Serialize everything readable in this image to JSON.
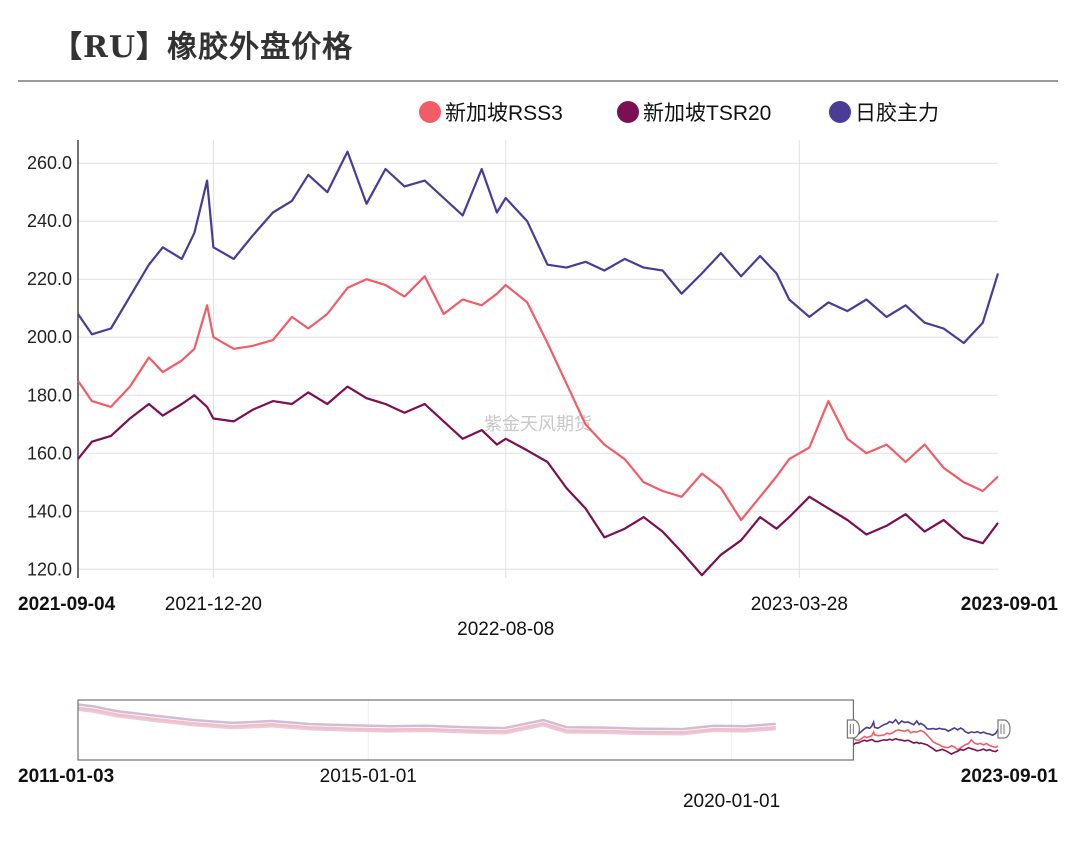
{
  "title": "【RU】橡胶外盘价格",
  "watermark": "紫金天风期货",
  "chart_data": {
    "type": "line",
    "legend_position": "top-right",
    "grid": true,
    "ylim": [
      117,
      268
    ],
    "yticks": [
      "260.0",
      "240.0",
      "220.0",
      "200.0",
      "180.0",
      "160.0",
      "140.0",
      "120.0"
    ],
    "ytick_values": [
      260,
      240,
      220,
      200,
      180,
      160,
      140,
      120
    ],
    "x_range": [
      "2021-09-04",
      "2023-09-01"
    ],
    "xticks": [
      {
        "label": "2021-09-04",
        "date": "2021-09-04",
        "bold": true,
        "row": 0
      },
      {
        "label": "2021-12-20",
        "date": "2021-12-20",
        "bold": false,
        "row": 0
      },
      {
        "label": "2022-08-08",
        "date": "2022-08-08",
        "bold": false,
        "row": 1
      },
      {
        "label": "2023-03-28",
        "date": "2023-03-28",
        "bold": false,
        "row": 0
      },
      {
        "label": "2023-09-01",
        "date": "2023-09-01",
        "bold": true,
        "row": 0
      }
    ],
    "series": [
      {
        "name": "新加坡RSS3",
        "color": "#f25c66",
        "points": [
          [
            "2021-09-04",
            185
          ],
          [
            "2021-09-15",
            178
          ],
          [
            "2021-09-30",
            176
          ],
          [
            "2021-10-15",
            183
          ],
          [
            "2021-10-30",
            193
          ],
          [
            "2021-11-10",
            188
          ],
          [
            "2021-11-25",
            192
          ],
          [
            "2021-12-05",
            196
          ],
          [
            "2021-12-15",
            211
          ],
          [
            "2021-12-20",
            200
          ],
          [
            "2022-01-05",
            196
          ],
          [
            "2022-01-20",
            197
          ],
          [
            "2022-02-05",
            199
          ],
          [
            "2022-02-20",
            207
          ],
          [
            "2022-03-05",
            203
          ],
          [
            "2022-03-20",
            208
          ],
          [
            "2022-04-05",
            217
          ],
          [
            "2022-04-20",
            220
          ],
          [
            "2022-05-05",
            218
          ],
          [
            "2022-05-20",
            214
          ],
          [
            "2022-06-05",
            221
          ],
          [
            "2022-06-20",
            208
          ],
          [
            "2022-07-05",
            213
          ],
          [
            "2022-07-20",
            211
          ],
          [
            "2022-08-01",
            215
          ],
          [
            "2022-08-08",
            218
          ],
          [
            "2022-08-25",
            212
          ],
          [
            "2022-09-10",
            198
          ],
          [
            "2022-09-25",
            184
          ],
          [
            "2022-10-10",
            170
          ],
          [
            "2022-10-25",
            163
          ],
          [
            "2022-11-10",
            158
          ],
          [
            "2022-11-25",
            150
          ],
          [
            "2022-12-10",
            147
          ],
          [
            "2022-12-25",
            145
          ],
          [
            "2023-01-10",
            153
          ],
          [
            "2023-01-25",
            148
          ],
          [
            "2023-02-10",
            137
          ],
          [
            "2023-02-25",
            145
          ],
          [
            "2023-03-10",
            152
          ],
          [
            "2023-03-20",
            158
          ],
          [
            "2023-04-05",
            162
          ],
          [
            "2023-04-20",
            178
          ],
          [
            "2023-05-05",
            165
          ],
          [
            "2023-05-20",
            160
          ],
          [
            "2023-06-05",
            163
          ],
          [
            "2023-06-20",
            157
          ],
          [
            "2023-07-05",
            163
          ],
          [
            "2023-07-20",
            155
          ],
          [
            "2023-08-05",
            150
          ],
          [
            "2023-08-20",
            147
          ],
          [
            "2023-09-01",
            152
          ]
        ]
      },
      {
        "name": "新加坡TSR20",
        "color": "#7b0f52",
        "points": [
          [
            "2021-09-04",
            158
          ],
          [
            "2021-09-15",
            164
          ],
          [
            "2021-09-30",
            166
          ],
          [
            "2021-10-15",
            172
          ],
          [
            "2021-10-30",
            177
          ],
          [
            "2021-11-10",
            173
          ],
          [
            "2021-11-25",
            177
          ],
          [
            "2021-12-05",
            180
          ],
          [
            "2021-12-15",
            176
          ],
          [
            "2021-12-20",
            172
          ],
          [
            "2022-01-05",
            171
          ],
          [
            "2022-01-20",
            175
          ],
          [
            "2022-02-05",
            178
          ],
          [
            "2022-02-20",
            177
          ],
          [
            "2022-03-05",
            181
          ],
          [
            "2022-03-20",
            177
          ],
          [
            "2022-04-05",
            183
          ],
          [
            "2022-04-20",
            179
          ],
          [
            "2022-05-05",
            177
          ],
          [
            "2022-05-20",
            174
          ],
          [
            "2022-06-05",
            177
          ],
          [
            "2022-06-20",
            171
          ],
          [
            "2022-07-05",
            165
          ],
          [
            "2022-07-20",
            168
          ],
          [
            "2022-08-01",
            163
          ],
          [
            "2022-08-08",
            165
          ],
          [
            "2022-08-25",
            161
          ],
          [
            "2022-09-10",
            157
          ],
          [
            "2022-09-25",
            148
          ],
          [
            "2022-10-10",
            141
          ],
          [
            "2022-10-25",
            131
          ],
          [
            "2022-11-10",
            134
          ],
          [
            "2022-11-25",
            138
          ],
          [
            "2022-12-10",
            133
          ],
          [
            "2022-12-25",
            126
          ],
          [
            "2023-01-10",
            118
          ],
          [
            "2023-01-25",
            125
          ],
          [
            "2023-02-10",
            130
          ],
          [
            "2023-02-25",
            138
          ],
          [
            "2023-03-10",
            134
          ],
          [
            "2023-03-20",
            138
          ],
          [
            "2023-04-05",
            145
          ],
          [
            "2023-04-20",
            141
          ],
          [
            "2023-05-05",
            137
          ],
          [
            "2023-05-20",
            132
          ],
          [
            "2023-06-05",
            135
          ],
          [
            "2023-06-20",
            139
          ],
          [
            "2023-07-05",
            133
          ],
          [
            "2023-07-20",
            137
          ],
          [
            "2023-08-05",
            131
          ],
          [
            "2023-08-20",
            129
          ],
          [
            "2023-09-01",
            136
          ]
        ]
      },
      {
        "name": "日胶主力",
        "color": "#4a3b96",
        "points": [
          [
            "2021-09-04",
            208
          ],
          [
            "2021-09-15",
            201
          ],
          [
            "2021-09-30",
            203
          ],
          [
            "2021-10-15",
            214
          ],
          [
            "2021-10-30",
            225
          ],
          [
            "2021-11-10",
            231
          ],
          [
            "2021-11-25",
            227
          ],
          [
            "2021-12-05",
            236
          ],
          [
            "2021-12-15",
            254
          ],
          [
            "2021-12-20",
            231
          ],
          [
            "2022-01-05",
            227
          ],
          [
            "2022-01-20",
            235
          ],
          [
            "2022-02-05",
            243
          ],
          [
            "2022-02-20",
            247
          ],
          [
            "2022-03-05",
            256
          ],
          [
            "2022-03-20",
            250
          ],
          [
            "2022-04-05",
            264
          ],
          [
            "2022-04-20",
            246
          ],
          [
            "2022-05-05",
            258
          ],
          [
            "2022-05-20",
            252
          ],
          [
            "2022-06-05",
            254
          ],
          [
            "2022-06-20",
            248
          ],
          [
            "2022-07-05",
            242
          ],
          [
            "2022-07-20",
            258
          ],
          [
            "2022-08-01",
            243
          ],
          [
            "2022-08-08",
            248
          ],
          [
            "2022-08-25",
            240
          ],
          [
            "2022-09-10",
            225
          ],
          [
            "2022-09-25",
            224
          ],
          [
            "2022-10-10",
            226
          ],
          [
            "2022-10-25",
            223
          ],
          [
            "2022-11-10",
            227
          ],
          [
            "2022-11-25",
            224
          ],
          [
            "2022-12-10",
            223
          ],
          [
            "2022-12-25",
            215
          ],
          [
            "2023-01-10",
            222
          ],
          [
            "2023-01-25",
            229
          ],
          [
            "2023-02-10",
            221
          ],
          [
            "2023-02-25",
            228
          ],
          [
            "2023-03-10",
            222
          ],
          [
            "2023-03-20",
            213
          ],
          [
            "2023-04-05",
            207
          ],
          [
            "2023-04-20",
            212
          ],
          [
            "2023-05-05",
            209
          ],
          [
            "2023-05-20",
            213
          ],
          [
            "2023-06-05",
            207
          ],
          [
            "2023-06-20",
            211
          ],
          [
            "2023-07-05",
            205
          ],
          [
            "2023-07-20",
            203
          ],
          [
            "2023-08-05",
            198
          ],
          [
            "2023-08-20",
            205
          ],
          [
            "2023-09-01",
            222
          ]
        ]
      }
    ],
    "navigator": {
      "range": [
        "2011-01-03",
        "2023-09-01"
      ],
      "selection": [
        "2021-09-04",
        "2023-09-01"
      ],
      "xticks": [
        {
          "label": "2011-01-03",
          "date": "2011-01-03",
          "bold": true,
          "row": 0
        },
        {
          "label": "2015-01-01",
          "date": "2015-01-01",
          "bold": false,
          "row": 0
        },
        {
          "label": "2020-01-01",
          "date": "2020-01-01",
          "bold": false,
          "row": 1
        },
        {
          "label": "2023-09-01",
          "date": "2023-09-01",
          "bold": true,
          "row": 0
        }
      ]
    }
  }
}
